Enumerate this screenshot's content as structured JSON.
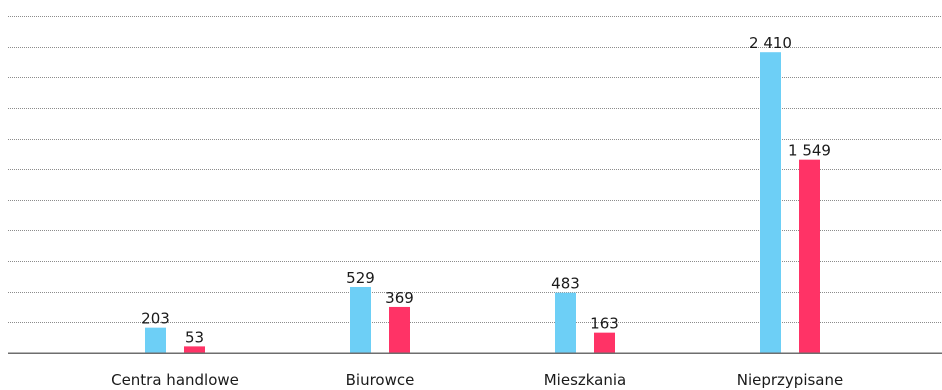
{
  "chart_data": {
    "type": "bar",
    "categories": [
      "Centra handlowe",
      "Biurowce",
      "Mieszkania",
      "Nieprzypisane"
    ],
    "series": [
      {
        "values": [
          203,
          529,
          483,
          2410
        ],
        "labels": [
          "203",
          "529",
          "483",
          "2 410"
        ]
      },
      {
        "values": [
          53,
          369,
          163,
          1549
        ],
        "labels": [
          "53",
          "369",
          "163",
          "1 549"
        ]
      }
    ],
    "ylim": [
      0,
      2700
    ],
    "gridlines": 11,
    "grid": true,
    "legend": false,
    "colors": [
      "#6dcff6",
      "#ff3366"
    ]
  }
}
